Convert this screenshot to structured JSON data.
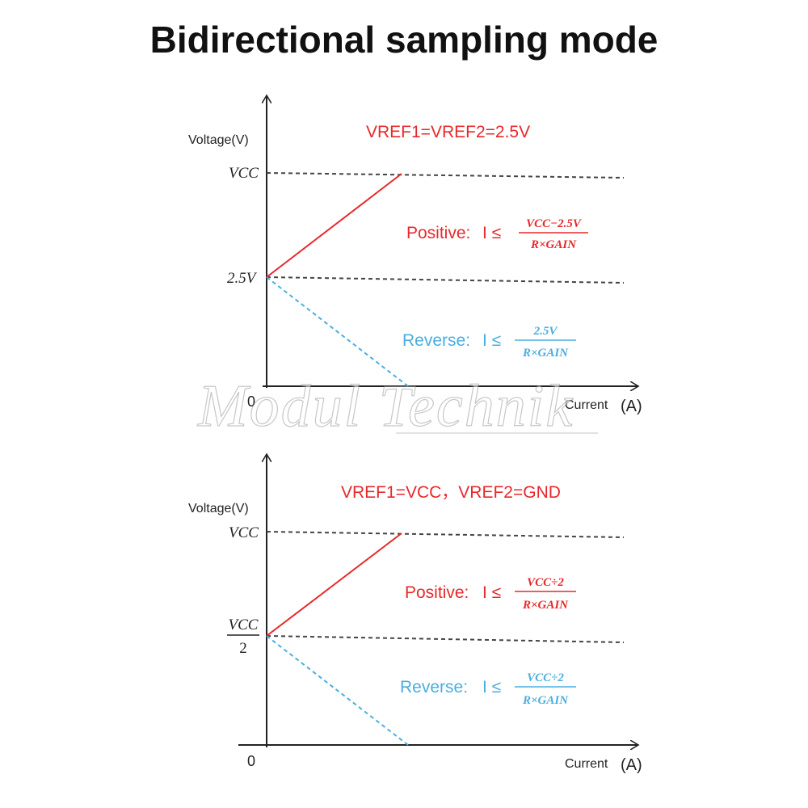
{
  "title": "Bidirectional sampling mode",
  "colors": {
    "positive": "#e8282b",
    "reverse": "#4aaee0",
    "axis": "#222222"
  },
  "watermark": "Modul Technik",
  "panels": [
    {
      "y_label": "Voltage(V)",
      "x_label": "Current",
      "x_unit": "(A)",
      "origin": "0",
      "vref": "VREF1=VREF2=2.5V",
      "tick_top": "VCC",
      "tick_mid": "2.5V",
      "positive_label": "Positive:",
      "positive_lhs": "I ≤",
      "positive_num": "VCC−2.5V",
      "positive_den": "R×GAIN",
      "reverse_label": "Reverse:",
      "reverse_lhs": "I ≤",
      "reverse_num": "2.5V",
      "reverse_den": "R×GAIN"
    },
    {
      "y_label": "Voltage(V)",
      "x_label": "Current",
      "x_unit": "(A)",
      "origin": "0",
      "vref": "VREF1=VCC，VREF2=GND",
      "tick_top": "VCC",
      "tick_mid_num": "VCC",
      "tick_mid_den": "2",
      "positive_label": "Positive:",
      "positive_lhs": "I ≤",
      "positive_num": "VCC÷2",
      "positive_den": "R×GAIN",
      "reverse_label": "Reverse:",
      "reverse_lhs": "I ≤",
      "reverse_num": "VCC÷2",
      "reverse_den": "R×GAIN"
    }
  ]
}
